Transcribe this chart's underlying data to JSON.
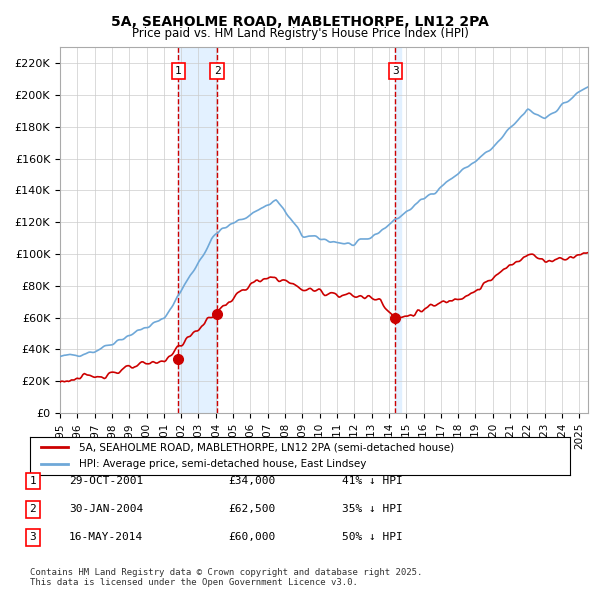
{
  "title1": "5A, SEAHOLME ROAD, MABLETHORPE, LN12 2PA",
  "title2": "Price paid vs. HM Land Registry's House Price Index (HPI)",
  "legend_line1": "5A, SEAHOLME ROAD, MABLETHORPE, LN12 2PA (semi-detached house)",
  "legend_line2": "HPI: Average price, semi-detached house, East Lindsey",
  "footer": "Contains HM Land Registry data © Crown copyright and database right 2025.\nThis data is licensed under the Open Government Licence v3.0.",
  "transactions": [
    {
      "num": 1,
      "date": "29-OCT-2001",
      "date_num": 2001.83,
      "price": 34000,
      "label": "29-OCT-2001",
      "amount": "£34,000",
      "pct": "41% ↓ HPI"
    },
    {
      "num": 2,
      "date": "30-JAN-2004",
      "date_num": 2004.08,
      "price": 62500,
      "label": "30-JAN-2004",
      "amount": "£62,500",
      "pct": "35% ↓ HPI"
    },
    {
      "num": 3,
      "date": "16-MAY-2014",
      "date_num": 2014.37,
      "price": 60000,
      "label": "16-MAY-2014",
      "amount": "£60,000",
      "pct": "50% ↓ HPI"
    }
  ],
  "hpi_color": "#6fa8d8",
  "price_color": "#cc0000",
  "marker_color": "#cc0000",
  "vline_color": "#cc0000",
  "shade_color": "#ddeeff",
  "grid_color": "#cccccc",
  "bg_color": "#ffffff",
  "ylim": [
    0,
    230000
  ],
  "xlim_start": 1995.0,
  "xlim_end": 2025.5
}
